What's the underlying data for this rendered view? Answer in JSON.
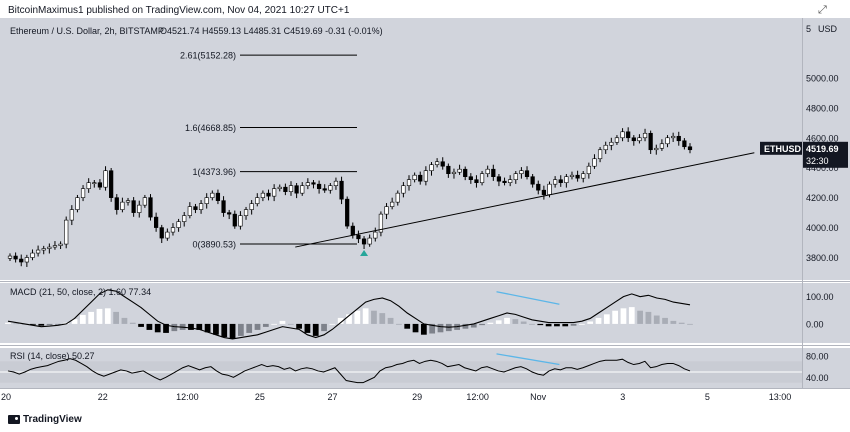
{
  "header": {
    "text": "BitcoinMaximus1 published on TradingView.com, Nov 04, 2021 10:27 UTC+1"
  },
  "legend": {
    "symbol_line": "Ethereum / U.S. Dollar, 2h, BITSTAMP",
    "ohlc": "O4521.74  H4559.13  L4485.31  C4519.69  -0.31 (-0.01%)"
  },
  "footer": {
    "brand": "TradingView"
  },
  "colors": {
    "background": "#d1d4dc",
    "panel_bg": "#d1d4dc",
    "up_candle": "#ffffff",
    "down_candle": "#000000",
    "rsi_band": "#c9ccd4",
    "accent_blue": "#5bb6e8",
    "green_marker": "#26a69a"
  },
  "chart_data": [
    {
      "type": "candlestick",
      "title": "Ethereum / U.S. Dollar, 2h, BITSTAMP",
      "currency_label": "USD",
      "ylim": [
        3650,
        5400
      ],
      "y_ticks": [
        5000,
        4800,
        4600,
        4400,
        4200,
        4000,
        3800
      ],
      "y_tick_labels": [
        "5000.00",
        "4800.00",
        "4600.00",
        "4400.00",
        "4200.00",
        "4000.00",
        "3800.00"
      ],
      "top_tick_label": "5",
      "x_tick_labels": [
        "20",
        "22",
        "12:00",
        "25",
        "27",
        "29",
        "12:00",
        "Nov",
        "3",
        "5",
        "13:00"
      ],
      "x_ticks": [
        0.0,
        0.1538,
        0.2885,
        0.4038,
        0.5192,
        0.6538,
        0.75,
        0.8462,
        0.9808,
        1.1154,
        1.2308
      ],
      "last_price_label": {
        "symbol": "ETHUSD",
        "price": "4519.69",
        "countdown": "32:30",
        "value": 4519.69
      },
      "fib_levels": [
        {
          "label": "0(3890.53)",
          "value": 3890.53
        },
        {
          "label": "1(4373.96)",
          "value": 4373.96
        },
        {
          "label": "1.6(4668.85)",
          "value": 4668.85
        },
        {
          "label": "2.61(5152.28)",
          "value": 5152.28
        }
      ],
      "trendline": {
        "start": [
          0.46,
          3870
        ],
        "end": [
          1.19,
          4500
        ]
      },
      "series_close": [
        3810,
        3790,
        3770,
        3800,
        3830,
        3850,
        3860,
        3870,
        3880,
        3890,
        4050,
        4120,
        4200,
        4260,
        4300,
        4300,
        4270,
        4380,
        4200,
        4120,
        4170,
        4180,
        4100,
        4150,
        4200,
        4070,
        4000,
        3930,
        3970,
        4000,
        4040,
        4080,
        4140,
        4120,
        4160,
        4200,
        4230,
        4180,
        4100,
        4090,
        4010,
        4080,
        4120,
        4160,
        4200,
        4230,
        4210,
        4260,
        4270,
        4240,
        4280,
        4230,
        4280,
        4300,
        4290,
        4260,
        4250,
        4280,
        4310,
        4190,
        4010,
        3950,
        3925,
        3890,
        3930,
        3970,
        4090,
        4140,
        4170,
        4230,
        4280,
        4320,
        4350,
        4310,
        4380,
        4420,
        4440,
        4410,
        4360,
        4370,
        4390,
        4340,
        4320,
        4300,
        4360,
        4390,
        4340,
        4310,
        4300,
        4320,
        4360,
        4380,
        4340,
        4290,
        4250,
        4220,
        4290,
        4320,
        4300,
        4340,
        4350,
        4330,
        4360,
        4410,
        4460,
        4520,
        4550,
        4570,
        4600,
        4640,
        4600,
        4580,
        4600,
        4630,
        4520,
        4530,
        4560,
        4600,
        4610,
        4580,
        4540,
        4520
      ],
      "ohlc_last": {
        "open": 4521.74,
        "high": 4559.13,
        "low": 4485.31,
        "close": 4519.69,
        "change": -0.31,
        "change_pct": -0.01
      }
    },
    {
      "type": "macd",
      "title": "MACD (21, 50, close, 2)",
      "legend": "MACD (21, 50, close, 2)  1.60  77.34",
      "values_label": [
        "1.60",
        "77.34"
      ],
      "ylim": [
        -70,
        150
      ],
      "y_ticks": [
        100,
        0
      ],
      "y_tick_labels": [
        "100.00",
        "0.00"
      ],
      "macd_line": [
        10,
        5,
        0,
        -5,
        -10,
        -8,
        -5,
        0,
        20,
        50,
        80,
        110,
        125,
        120,
        100,
        80,
        60,
        35,
        10,
        -5,
        -10,
        -12,
        -15,
        -20,
        -30,
        -40,
        -50,
        -55,
        -50,
        -45,
        -40,
        -30,
        -20,
        -10,
        -15,
        -20,
        -40,
        -50,
        -40,
        -20,
        5,
        30,
        55,
        80,
        90,
        95,
        85,
        65,
        40,
        20,
        0,
        -5,
        -10,
        -12,
        -10,
        -5,
        0,
        10,
        20,
        30,
        40,
        35,
        25,
        15,
        10,
        5,
        5,
        5,
        5,
        10,
        20,
        40,
        60,
        80,
        100,
        110,
        100,
        105,
        95,
        90,
        80,
        75,
        70
      ],
      "histogram": [
        2,
        1,
        0,
        -1,
        -3,
        -2,
        -1,
        2,
        8,
        15,
        20,
        25,
        26,
        20,
        10,
        2,
        -5,
        -10,
        -14,
        -15,
        -12,
        -10,
        -10,
        -10,
        -14,
        -18,
        -22,
        -25,
        -20,
        -15,
        -10,
        -5,
        0,
        5,
        0,
        -8,
        -15,
        -20,
        -12,
        0,
        10,
        16,
        22,
        26,
        22,
        18,
        10,
        0,
        -8,
        -14,
        -18,
        -16,
        -14,
        -12,
        -10,
        -8,
        -6,
        -2,
        2,
        6,
        10,
        8,
        4,
        0,
        -2,
        -4,
        -4,
        -4,
        -3,
        0,
        4,
        10,
        16,
        22,
        26,
        28,
        22,
        20,
        14,
        10,
        5,
        2,
        0
      ],
      "divergence_line": {
        "start": [
          0.78,
          118
        ],
        "end": [
          0.88,
          72
        ]
      }
    },
    {
      "type": "rsi",
      "title": "RSI (14, close)",
      "legend": "RSI (14, close)  50.27",
      "value_label": "50.27",
      "ylim": [
        20,
        95
      ],
      "y_ticks": [
        80,
        40
      ],
      "y_tick_labels": [
        "80.00",
        "40.00"
      ],
      "band": [
        30,
        70
      ],
      "mid_line": 50,
      "values": [
        52,
        50,
        46,
        50,
        55,
        58,
        60,
        62,
        66,
        70,
        72,
        75,
        72,
        66,
        60,
        52,
        46,
        42,
        46,
        50,
        54,
        52,
        48,
        50,
        52,
        46,
        40,
        35,
        40,
        46,
        52,
        58,
        62,
        58,
        54,
        58,
        60,
        52,
        46,
        44,
        40,
        46,
        52,
        56,
        60,
        64,
        60,
        62,
        60,
        55,
        58,
        52,
        56,
        58,
        56,
        52,
        50,
        54,
        58,
        46,
        34,
        32,
        30,
        30,
        35,
        40,
        52,
        58,
        60,
        64,
        66,
        70,
        72,
        66,
        70,
        72,
        70,
        66,
        60,
        62,
        64,
        58,
        55,
        52,
        58,
        60,
        56,
        52,
        50,
        54,
        58,
        60,
        56,
        50,
        46,
        44,
        52,
        56,
        54,
        58,
        58,
        55,
        58,
        62,
        66,
        70,
        72,
        72,
        72,
        74,
        68,
        64,
        66,
        70,
        58,
        60,
        64,
        66,
        66,
        62,
        56,
        52
      ],
      "divergence_line": {
        "start": [
          0.78,
          84
        ],
        "end": [
          0.88,
          64
        ]
      }
    }
  ]
}
